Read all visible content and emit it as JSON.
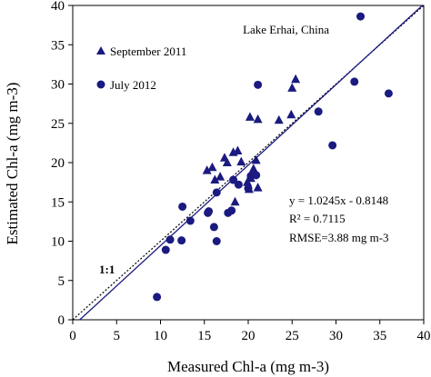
{
  "chart_data": {
    "type": "scatter",
    "title": "Lake Erhai, China",
    "xlabel": "Measured Chl-a (mg m-3)",
    "ylabel": "Estimated Chl-a (mg m-3)",
    "xlim": [
      0,
      40
    ],
    "ylim": [
      0,
      40
    ],
    "x_ticks": [
      0,
      5,
      10,
      15,
      20,
      25,
      30,
      35,
      40
    ],
    "y_ticks": [
      0,
      5,
      10,
      15,
      20,
      25,
      30,
      35,
      40
    ],
    "grid": false,
    "legend_position": "top-left",
    "marker_color": "#1a1a80",
    "series": [
      {
        "name": "September 2011",
        "marker": "triangle",
        "points": [
          [
            15.3,
            19.0
          ],
          [
            15.9,
            19.4
          ],
          [
            16.2,
            17.8
          ],
          [
            16.8,
            18.2
          ],
          [
            17.3,
            20.6
          ],
          [
            17.6,
            20.0
          ],
          [
            18.3,
            21.3
          ],
          [
            18.8,
            21.5
          ],
          [
            19.2,
            20.1
          ],
          [
            19.9,
            17.5
          ],
          [
            20.3,
            18.0
          ],
          [
            20.1,
            16.6
          ],
          [
            20.6,
            19.2
          ],
          [
            20.9,
            20.3
          ],
          [
            21.1,
            16.8
          ],
          [
            18.5,
            15.0
          ],
          [
            20.2,
            25.8
          ],
          [
            21.1,
            25.5
          ],
          [
            23.5,
            25.4
          ],
          [
            24.9,
            26.1
          ],
          [
            25.0,
            29.5
          ],
          [
            25.4,
            30.6
          ]
        ]
      },
      {
        "name": "July 2012",
        "marker": "circle",
        "points": [
          [
            9.6,
            2.9
          ],
          [
            10.6,
            8.9
          ],
          [
            11.1,
            10.2
          ],
          [
            12.4,
            10.1
          ],
          [
            12.5,
            14.4
          ],
          [
            13.4,
            12.6
          ],
          [
            15.5,
            13.8
          ],
          [
            15.4,
            13.6
          ],
          [
            16.1,
            11.8
          ],
          [
            16.4,
            10.0
          ],
          [
            16.4,
            16.2
          ],
          [
            17.7,
            13.6
          ],
          [
            18.1,
            13.9
          ],
          [
            18.3,
            17.8
          ],
          [
            18.9,
            17.2
          ],
          [
            20.0,
            16.7
          ],
          [
            20.3,
            18.3
          ],
          [
            20.9,
            18.4
          ],
          [
            21.1,
            29.9
          ],
          [
            28.0,
            26.5
          ],
          [
            29.6,
            22.2
          ],
          [
            32.1,
            30.3
          ],
          [
            32.8,
            38.6
          ],
          [
            36.0,
            28.8
          ]
        ]
      }
    ],
    "lines": [
      {
        "name": "1:1",
        "style": "dotted",
        "slope": 1,
        "intercept": 0
      },
      {
        "name": "fit",
        "style": "solid",
        "slope": 1.0245,
        "intercept": -0.8148
      }
    ],
    "line_label": "1:1",
    "annotations": {
      "equation": "y = 1.0245x - 0.8148",
      "r2": "R² = 0.7115",
      "rmse": "RMSE=3.88 mg m-3"
    }
  }
}
